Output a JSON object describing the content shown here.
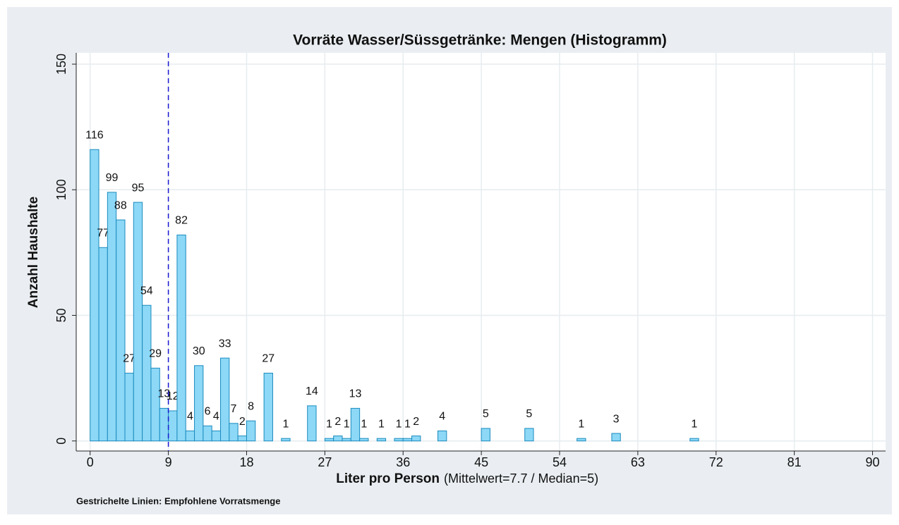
{
  "chart_data": {
    "type": "histogram",
    "title": "Vorräte Wasser/Süssgetränke: Mengen (Histogramm)",
    "xlabel": "Liter pro Person",
    "xlabel_note": "(Mittelwert=7.7 / Median=5)",
    "ylabel": "Anzahl Haushalte",
    "footnote": "Gestrichelte Linien: Empfohlene Vorratsmenge",
    "bins": [
      0,
      1,
      2,
      3,
      4,
      5,
      6,
      7,
      8,
      9,
      10,
      11,
      12,
      13,
      14,
      15,
      16,
      17,
      18,
      19,
      20,
      21,
      22,
      23,
      24,
      25,
      26,
      27,
      28,
      29,
      30,
      31,
      32,
      33,
      34,
      35,
      36,
      37,
      38,
      39,
      40,
      41,
      42,
      43,
      44,
      45,
      46,
      47,
      48,
      49,
      50,
      51,
      52,
      53,
      54,
      55,
      56,
      57,
      58,
      59,
      60,
      61,
      62,
      63,
      64,
      65,
      66,
      67,
      68,
      69,
      70
    ],
    "counts": [
      116,
      77,
      99,
      88,
      27,
      95,
      54,
      29,
      13,
      12,
      82,
      4,
      30,
      6,
      4,
      33,
      7,
      2,
      8,
      0,
      27,
      0,
      1,
      0,
      0,
      14,
      0,
      1,
      2,
      1,
      13,
      1,
      0,
      1,
      0,
      1,
      1,
      2,
      0,
      0,
      4,
      0,
      0,
      0,
      0,
      5,
      0,
      0,
      0,
      0,
      5,
      0,
      0,
      0,
      0,
      0,
      1,
      0,
      0,
      0,
      3,
      0,
      0,
      0,
      0,
      0,
      0,
      0,
      0,
      1
    ],
    "color": "#8cd8f6",
    "edgecolor": "#1b8bbf",
    "reference_line": {
      "x": 9,
      "color": "#1a1ad0"
    },
    "xlim": [
      -1.6,
      91.5
    ],
    "xticks": [
      0,
      9,
      18,
      27,
      36,
      45,
      54,
      63,
      72,
      81,
      90
    ],
    "ylim": [
      -4,
      154.5
    ],
    "yticks": [
      0,
      50,
      100,
      150
    ],
    "grid": true
  }
}
